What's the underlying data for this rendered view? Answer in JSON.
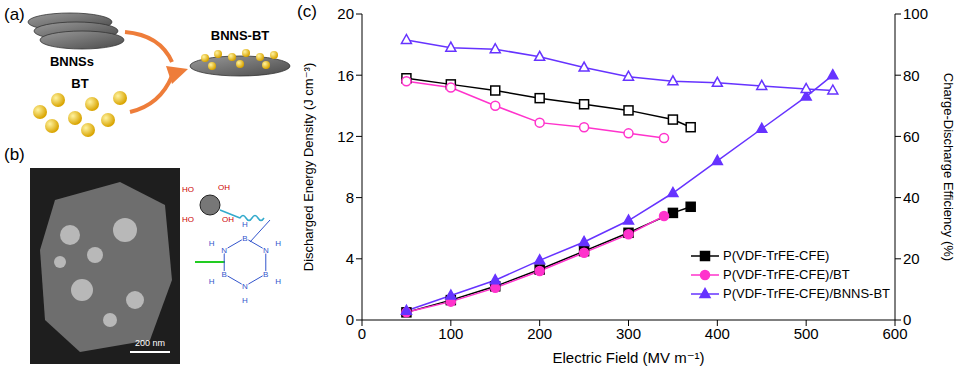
{
  "panel_labels": [
    "(a)",
    "(b)",
    "(c)"
  ],
  "panel_a": {
    "sheets": "BNNSs",
    "particles": "BT",
    "product": "BNNS-BT"
  },
  "panel_b": {
    "scale_bar": "200 nm",
    "molecule": {
      "particle_groups": [
        "HO",
        "HO",
        "OH",
        "OH"
      ],
      "ring_atoms": [
        "B",
        "N"
      ],
      "hydrogen": "H"
    }
  },
  "chart_data": {
    "type": "line",
    "xlabel": "Electric Field (MV m⁻¹)",
    "ylabel": "Discharged Energy Density (J cm⁻³)",
    "y2label": "Charge-Discharge Efficiency (%)",
    "xlim": [
      0,
      600
    ],
    "xticks": [
      0,
      100,
      200,
      300,
      400,
      500,
      600
    ],
    "ylim": [
      0,
      20
    ],
    "yticks": [
      0,
      4,
      8,
      12,
      16,
      20
    ],
    "y2lim": [
      0,
      100
    ],
    "y2ticks": [
      0,
      20,
      40,
      60,
      80,
      100
    ],
    "grid": false,
    "legend": "bottom right",
    "series": [
      {
        "name": "P(VDF-TrFE-CFE)",
        "color": "#000000",
        "marker": "square",
        "x": [
          50,
          100,
          150,
          200,
          250,
          300,
          350,
          370
        ],
        "values": [
          0.5,
          1.3,
          2.2,
          3.3,
          4.5,
          5.7,
          7.0,
          7.4
        ],
        "efficiency_values": [
          79,
          77,
          75,
          72.5,
          70.5,
          68.5,
          65.5,
          63
        ]
      },
      {
        "name": "P(VDF-TrFE-CFE)/BT",
        "color": "#ff33cc",
        "marker": "circle",
        "x": [
          50,
          100,
          150,
          200,
          250,
          300,
          340
        ],
        "values": [
          0.5,
          1.2,
          2.1,
          3.2,
          4.4,
          5.6,
          6.8
        ],
        "efficiency_values": [
          78,
          76,
          70,
          64.5,
          63,
          61,
          59.5
        ]
      },
      {
        "name": "P(VDF-TrFE-CFE)/BNNS-BT",
        "color": "#6633ff",
        "marker": "triangle",
        "x": [
          50,
          100,
          150,
          200,
          250,
          300,
          350,
          400,
          450,
          500,
          530
        ],
        "values": [
          0.6,
          1.6,
          2.6,
          3.9,
          5.1,
          6.5,
          8.3,
          10.4,
          12.5,
          14.6,
          16.0
        ],
        "efficiency_values": [
          91.5,
          89,
          88.5,
          86,
          82.5,
          79.5,
          78,
          77.5,
          76.5,
          75.5,
          75
        ]
      }
    ]
  }
}
